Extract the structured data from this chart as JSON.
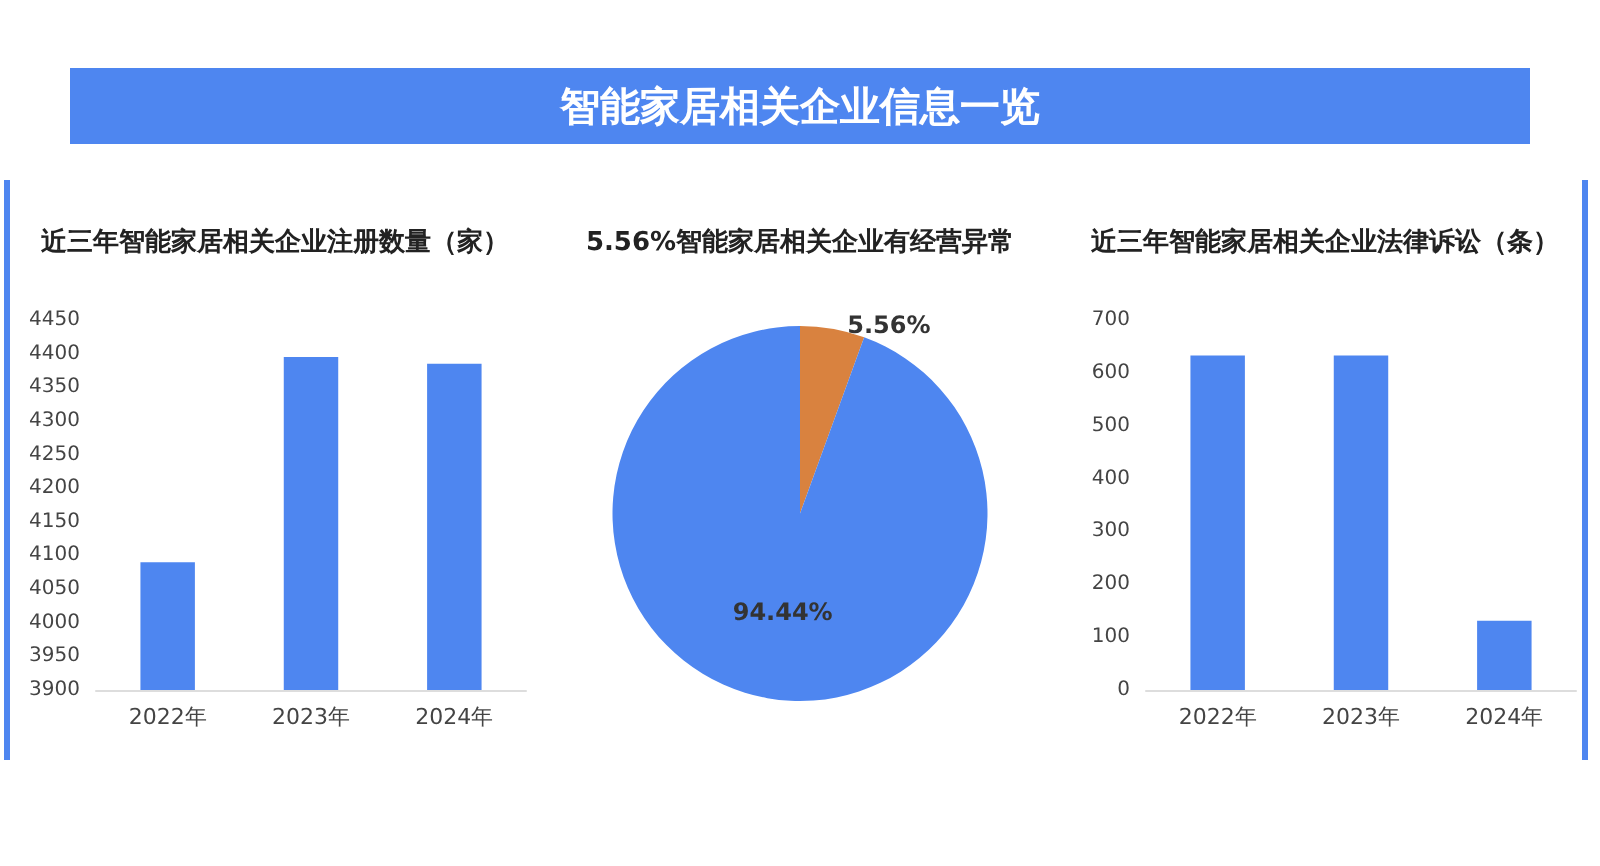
{
  "chart_data": [
    {
      "type": "other",
      "title": "智能家居相关企业信息一览"
    },
    {
      "type": "bar",
      "title": "近三年智能家居相关企业注册数量（家）",
      "categories": [
        "2022年",
        "2023年",
        "2024年"
      ],
      "values": [
        4090,
        4395,
        4385
      ],
      "color": "#4e86f0",
      "ylim": [
        3900,
        4450
      ],
      "yticks": [
        3900,
        3950,
        4000,
        4050,
        4100,
        4150,
        4200,
        4250,
        4300,
        4350,
        4400,
        4450
      ]
    },
    {
      "type": "pie",
      "title": "5.56%智能家居相关企业有经营异常",
      "categories": [
        null,
        null
      ],
      "values": [
        5.56,
        94.44
      ],
      "colors": [
        "#d9823f",
        "#4e86f0"
      ],
      "value_labels": [
        "5.56%",
        "94.44%"
      ]
    },
    {
      "type": "bar",
      "title": "近三年智能家居相关企业法律诉讼（条）",
      "categories": [
        "2022年",
        "2023年",
        "2024年"
      ],
      "values": [
        633,
        633,
        131
      ],
      "color": "#4e86f0",
      "ylim": [
        0,
        700
      ],
      "yticks": [
        0,
        100,
        200,
        300,
        400,
        500,
        600,
        700
      ]
    }
  ]
}
